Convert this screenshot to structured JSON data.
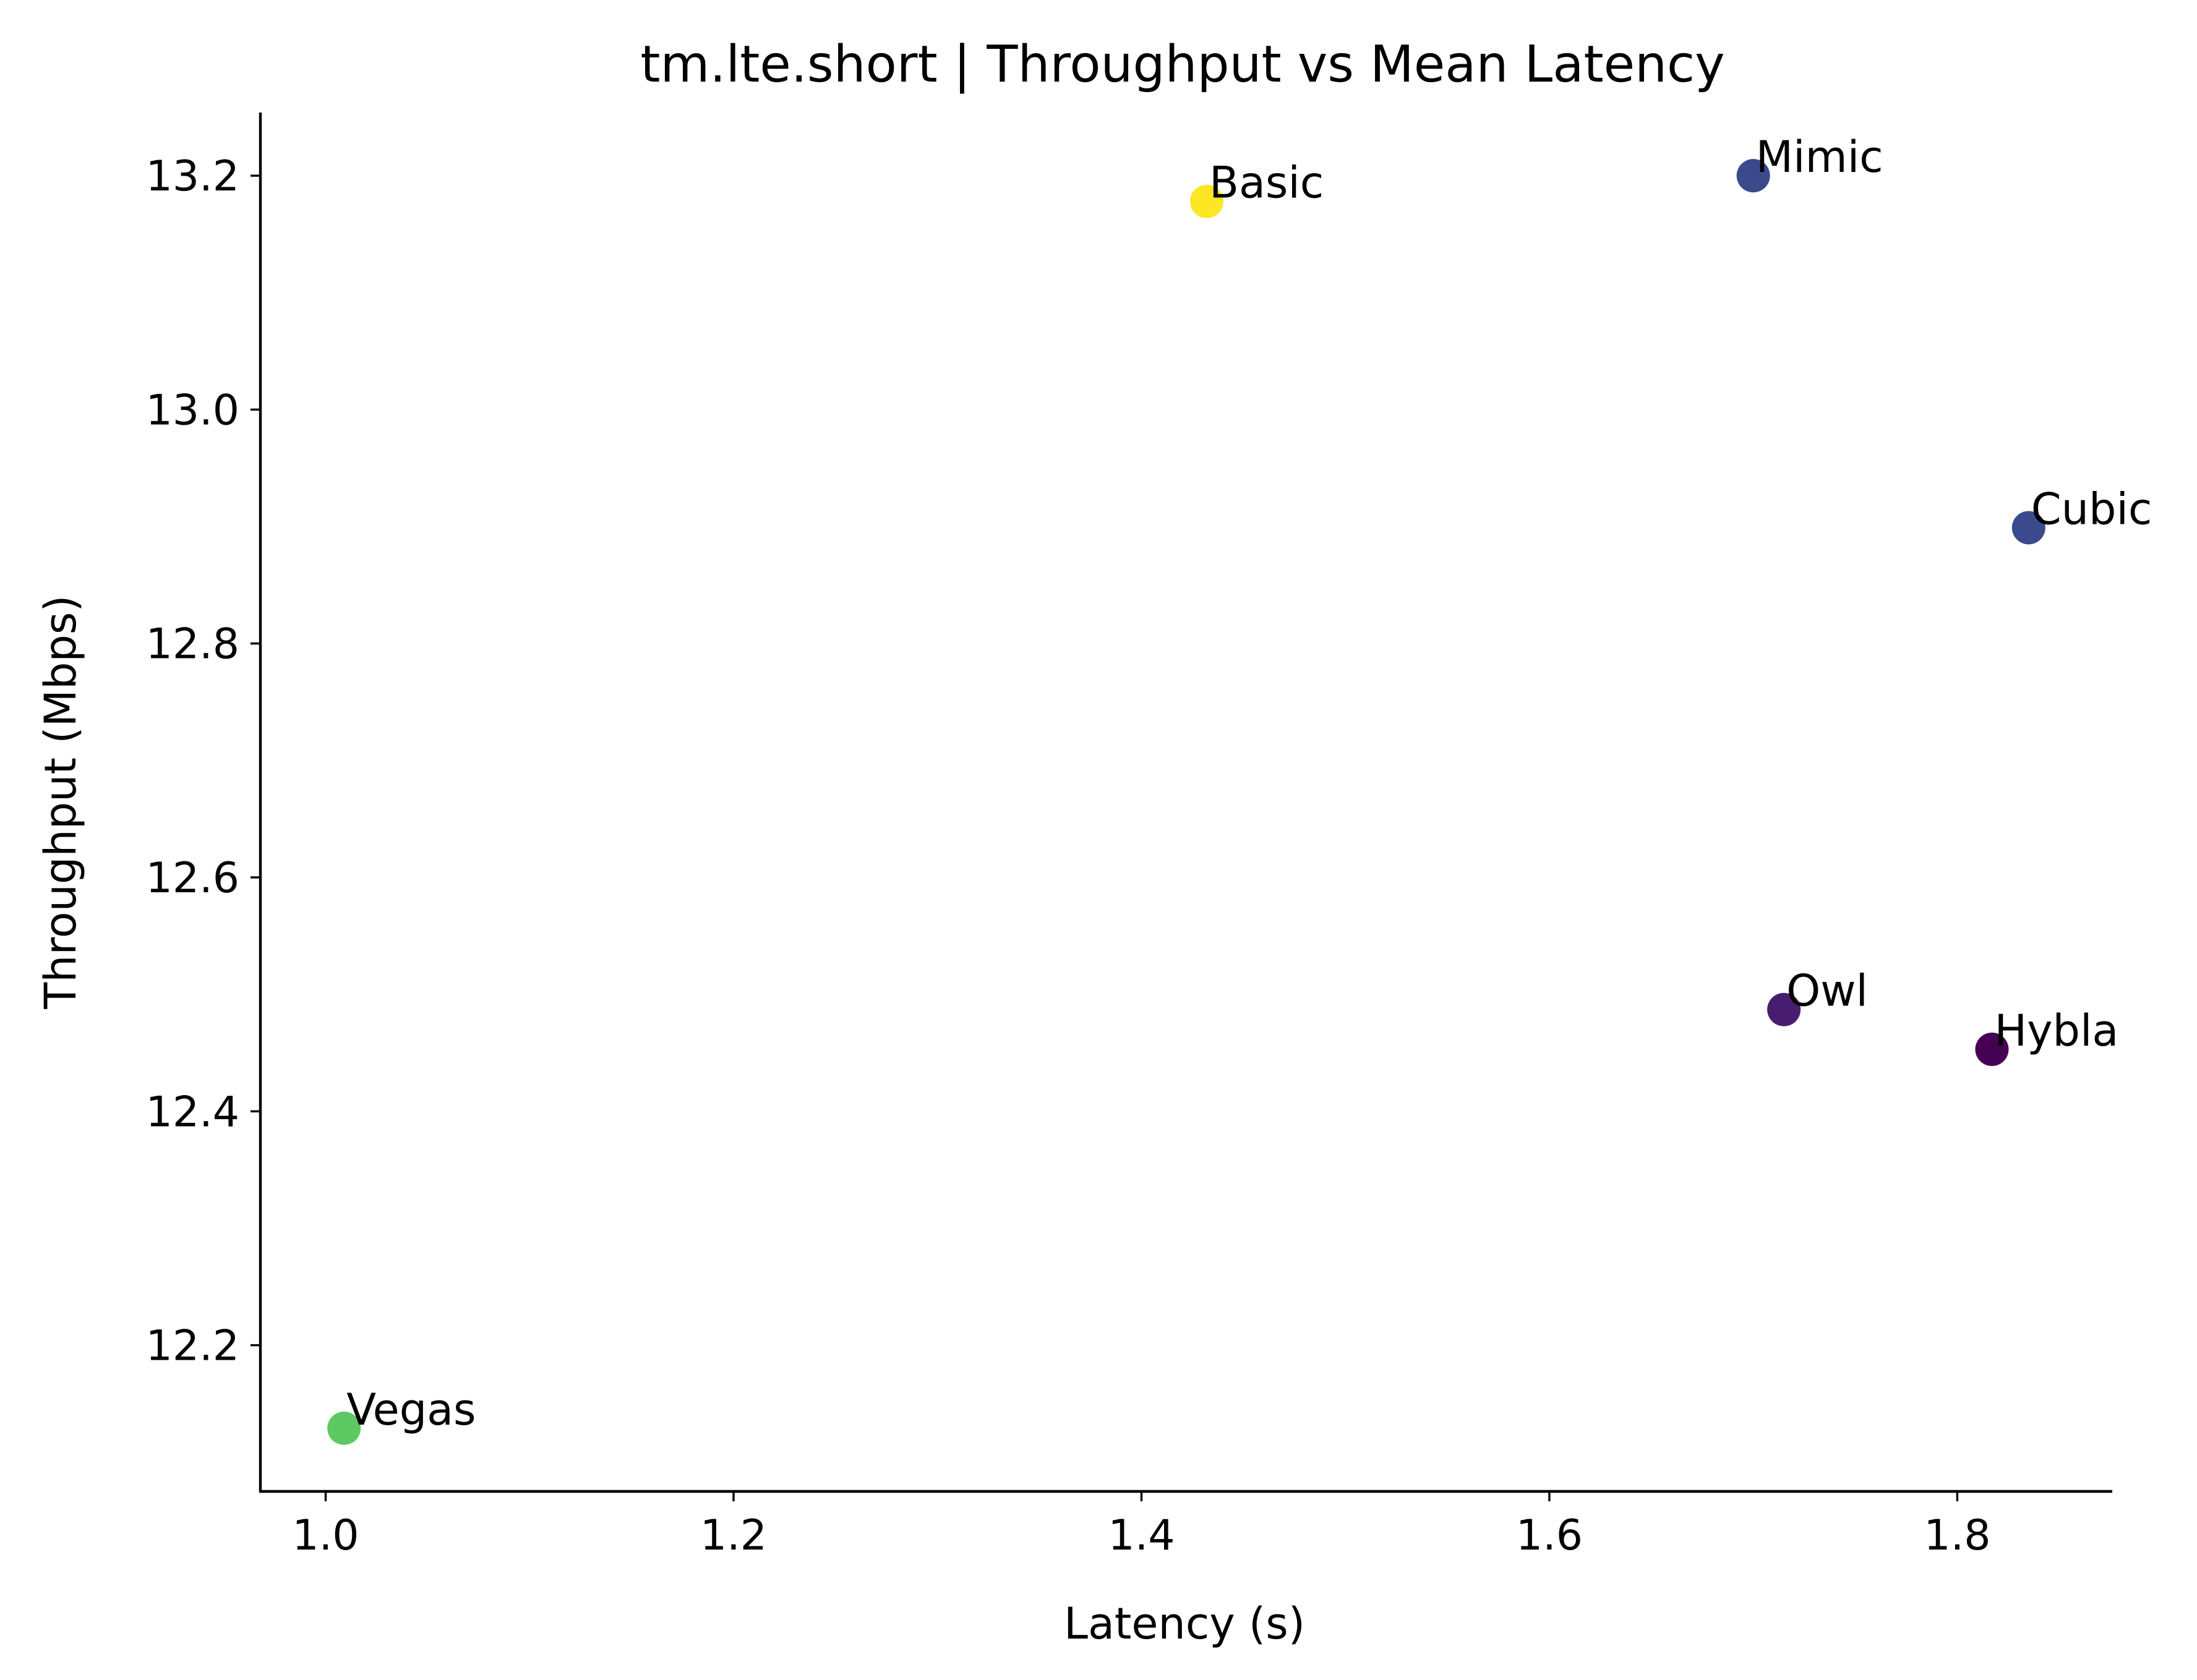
{
  "chart_data": {
    "type": "scatter",
    "title": "tm.lte.short | Throughput vs Mean Latency",
    "xlabel": "Latency (s)",
    "ylabel": "Throughput (Mbps)",
    "xlim": [
      0.968,
      1.876
    ],
    "ylim": [
      12.075,
      13.254
    ],
    "xticks": [
      1.0,
      1.2,
      1.4,
      1.6,
      1.8
    ],
    "xtick_labels": [
      "1.0",
      "1.2",
      "1.4",
      "1.6",
      "1.8"
    ],
    "yticks": [
      12.2,
      12.4,
      12.6,
      12.8,
      13.0,
      13.2
    ],
    "ytick_labels": [
      "12.2",
      "12.4",
      "12.6",
      "12.8",
      "13.0",
      "13.2"
    ],
    "grid": false,
    "points": [
      {
        "label": "Basic",
        "x": 1.432,
        "y": 13.178,
        "color": "#fde725"
      },
      {
        "label": "Mimic",
        "x": 1.7,
        "y": 13.2,
        "color": "#3b4a8c"
      },
      {
        "label": "Cubic",
        "x": 1.835,
        "y": 12.899,
        "color": "#3b4a8c"
      },
      {
        "label": "Owl",
        "x": 1.715,
        "y": 12.487,
        "color": "#481d6f"
      },
      {
        "label": "Hybla",
        "x": 1.817,
        "y": 12.453,
        "color": "#440154"
      },
      {
        "label": "Vegas",
        "x": 1.009,
        "y": 12.129,
        "color": "#5ec962"
      }
    ]
  }
}
